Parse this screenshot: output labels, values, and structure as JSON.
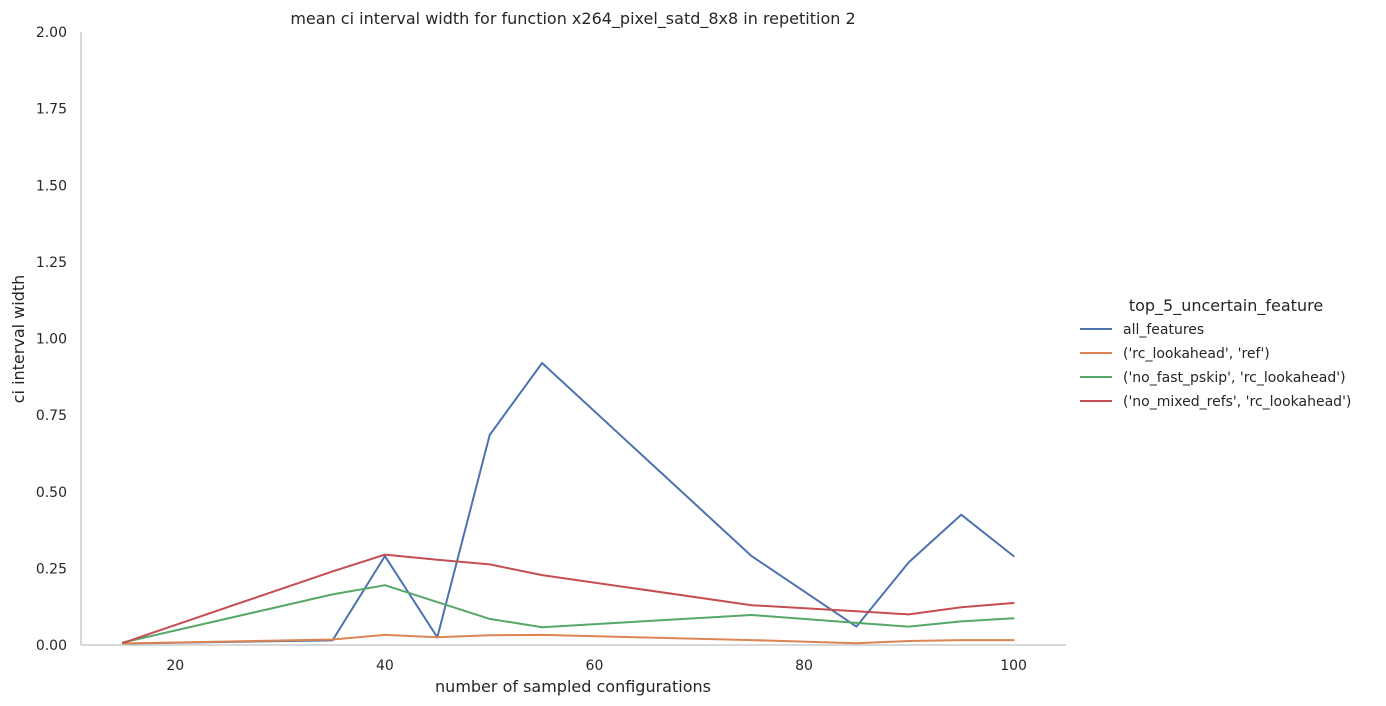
{
  "chart_data": {
    "type": "line",
    "title": "mean ci interval width for function x264_pixel_satd_8x8 in repetition 2",
    "xlabel": "number of sampled configurations",
    "ylabel": "ci interval width",
    "xlim": [
      11,
      105
    ],
    "ylim": [
      0,
      2.0
    ],
    "xticks": [
      20,
      40,
      60,
      80,
      100
    ],
    "xtick_labels": [
      "20",
      "40",
      "60",
      "80",
      "100"
    ],
    "yticks": [
      0,
      0.25,
      0.5,
      0.75,
      1.0,
      1.25,
      1.5,
      1.75,
      2.0
    ],
    "ytick_labels": [
      "0.00",
      "0.25",
      "0.50",
      "0.75",
      "1.00",
      "1.25",
      "1.50",
      "1.75",
      "2.00"
    ],
    "grid": false,
    "legend": {
      "title": "top_5_uncertain_feature",
      "placement": "right"
    },
    "series": [
      {
        "name": "all_features",
        "color": "#4c72b0",
        "x": [
          15,
          35,
          40,
          45,
          50,
          55,
          75,
          85,
          90,
          95,
          100
        ],
        "y": [
          0.005,
          0.015,
          0.29,
          0.025,
          0.685,
          0.92,
          0.29,
          0.06,
          0.27,
          0.425,
          0.29
        ]
      },
      {
        "name": "('rc_lookahead', 'ref')",
        "color": "#dd8452",
        "x": [
          15,
          35,
          40,
          45,
          50,
          55,
          75,
          85,
          90,
          95,
          100
        ],
        "y": [
          0.005,
          0.018,
          0.033,
          0.025,
          0.032,
          0.033,
          0.016,
          0.006,
          0.013,
          0.016,
          0.016
        ]
      },
      {
        "name": "('no_fast_pskip', 'rc_lookahead')",
        "color": "#55a868",
        "x": [
          15,
          35,
          40,
          45,
          50,
          55,
          75,
          85,
          90,
          95,
          100
        ],
        "y": [
          0.008,
          0.165,
          0.195,
          0.14,
          0.085,
          0.058,
          0.098,
          0.072,
          0.06,
          0.077,
          0.087
        ]
      },
      {
        "name": "('no_mixed_refs', 'rc_lookahead')",
        "color": "#c44e52",
        "x": [
          15,
          35,
          40,
          45,
          50,
          55,
          75,
          85,
          90,
          95,
          100
        ],
        "y": [
          0.007,
          0.24,
          0.295,
          0.278,
          0.263,
          0.228,
          0.13,
          0.11,
          0.1,
          0.123,
          0.137
        ]
      }
    ]
  }
}
